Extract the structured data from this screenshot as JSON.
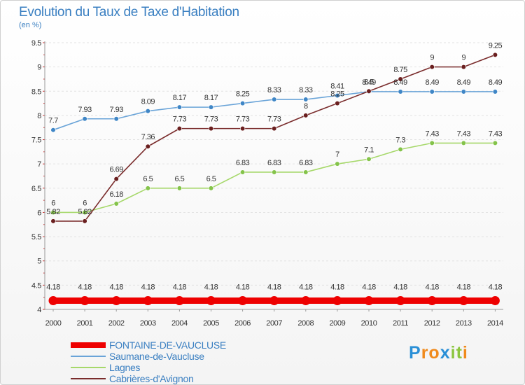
{
  "title": "Evolution du Taux de Taxe d'Habitation",
  "subtitle": "(en %)",
  "logo": {
    "text": "Proxiti",
    "letters": [
      "P",
      "r",
      "o",
      "x",
      "i",
      "t",
      "i"
    ],
    "colors": [
      "#2a8fd6",
      "#f08a1c",
      "#f08a1c",
      "#2a8fd6",
      "#8cc63f",
      "#8cc63f",
      "#f08a1c"
    ]
  },
  "chart_data": {
    "type": "line",
    "title": "Evolution du Taux de Taxe d'Habitation",
    "subtitle": "(en %)",
    "x": [
      "2000",
      "2001",
      "2002",
      "2003",
      "2004",
      "2005",
      "2006",
      "2007",
      "2008",
      "2009",
      "2010",
      "2011",
      "2012",
      "2013",
      "2014"
    ],
    "ylim": [
      4,
      9.5
    ],
    "yticks": [
      "4",
      "4.5",
      "5",
      "5.5",
      "6",
      "6.5",
      "7",
      "7.5",
      "8",
      "8.5",
      "9",
      "9.5"
    ],
    "grid": "horizontal dashed",
    "legend_position": "bottom-left",
    "series": [
      {
        "name": "FONTAINE-DE-VAUCLUSE",
        "color": "#ee0000",
        "width": 9,
        "marker_fill": "#ee0000",
        "values": [
          4.18,
          4.18,
          4.18,
          4.18,
          4.18,
          4.18,
          4.18,
          4.18,
          4.18,
          4.18,
          4.18,
          4.18,
          4.18,
          4.18,
          4.18
        ],
        "labels": [
          "4.18",
          "4.18",
          "4.18",
          "4.18",
          "4.18",
          "4.18",
          "4.18",
          "4.18",
          "4.18",
          "4.18",
          "4.18",
          "4.18",
          "4.18",
          "4.18",
          "4.18"
        ]
      },
      {
        "name": "Saumane-de-Vaucluse",
        "color": "#6aa4d8",
        "width": 1.6,
        "marker_fill": "#3f86c6",
        "values": [
          7.7,
          7.93,
          7.93,
          8.09,
          8.17,
          8.17,
          8.25,
          8.33,
          8.33,
          8.41,
          8.49,
          8.49,
          8.49,
          8.49,
          8.49
        ],
        "labels": [
          "7.7",
          "7.93",
          "7.93",
          "8.09",
          "8.17",
          "8.17",
          "8.25",
          "8.33",
          "8.33",
          "8.41",
          "8.49",
          "8.49",
          "8.49",
          "8.49",
          "8.49"
        ]
      },
      {
        "name": "Lagnes",
        "color": "#a6d86a",
        "width": 1.6,
        "marker_fill": "#84c34a",
        "values": [
          6,
          6,
          6.18,
          6.5,
          6.5,
          6.5,
          6.83,
          6.83,
          6.83,
          7,
          7.1,
          7.3,
          7.43,
          7.43,
          7.43
        ],
        "labels": [
          "6",
          "6",
          "6.18",
          "6.5",
          "6.5",
          "6.5",
          "6.83",
          "6.83",
          "6.83",
          "7",
          "7.1",
          "7.3",
          "7.43",
          "7.43",
          "7.43"
        ]
      },
      {
        "name": "Cabrières-d'Avignon",
        "color": "#7a2c2c",
        "width": 1.6,
        "marker_fill": "#6a1f1f",
        "values": [
          5.82,
          5.82,
          6.69,
          7.36,
          7.73,
          7.73,
          7.73,
          7.73,
          8,
          8.25,
          8.5,
          8.75,
          9,
          9,
          9.25
        ],
        "labels": [
          "5.82",
          "5.82",
          "6.69",
          "7.36",
          "7.73",
          "7.73",
          "7.73",
          "7.73",
          "8",
          "8.25",
          "8.5",
          "8.75",
          "9",
          "9",
          "9.25"
        ]
      }
    ]
  }
}
